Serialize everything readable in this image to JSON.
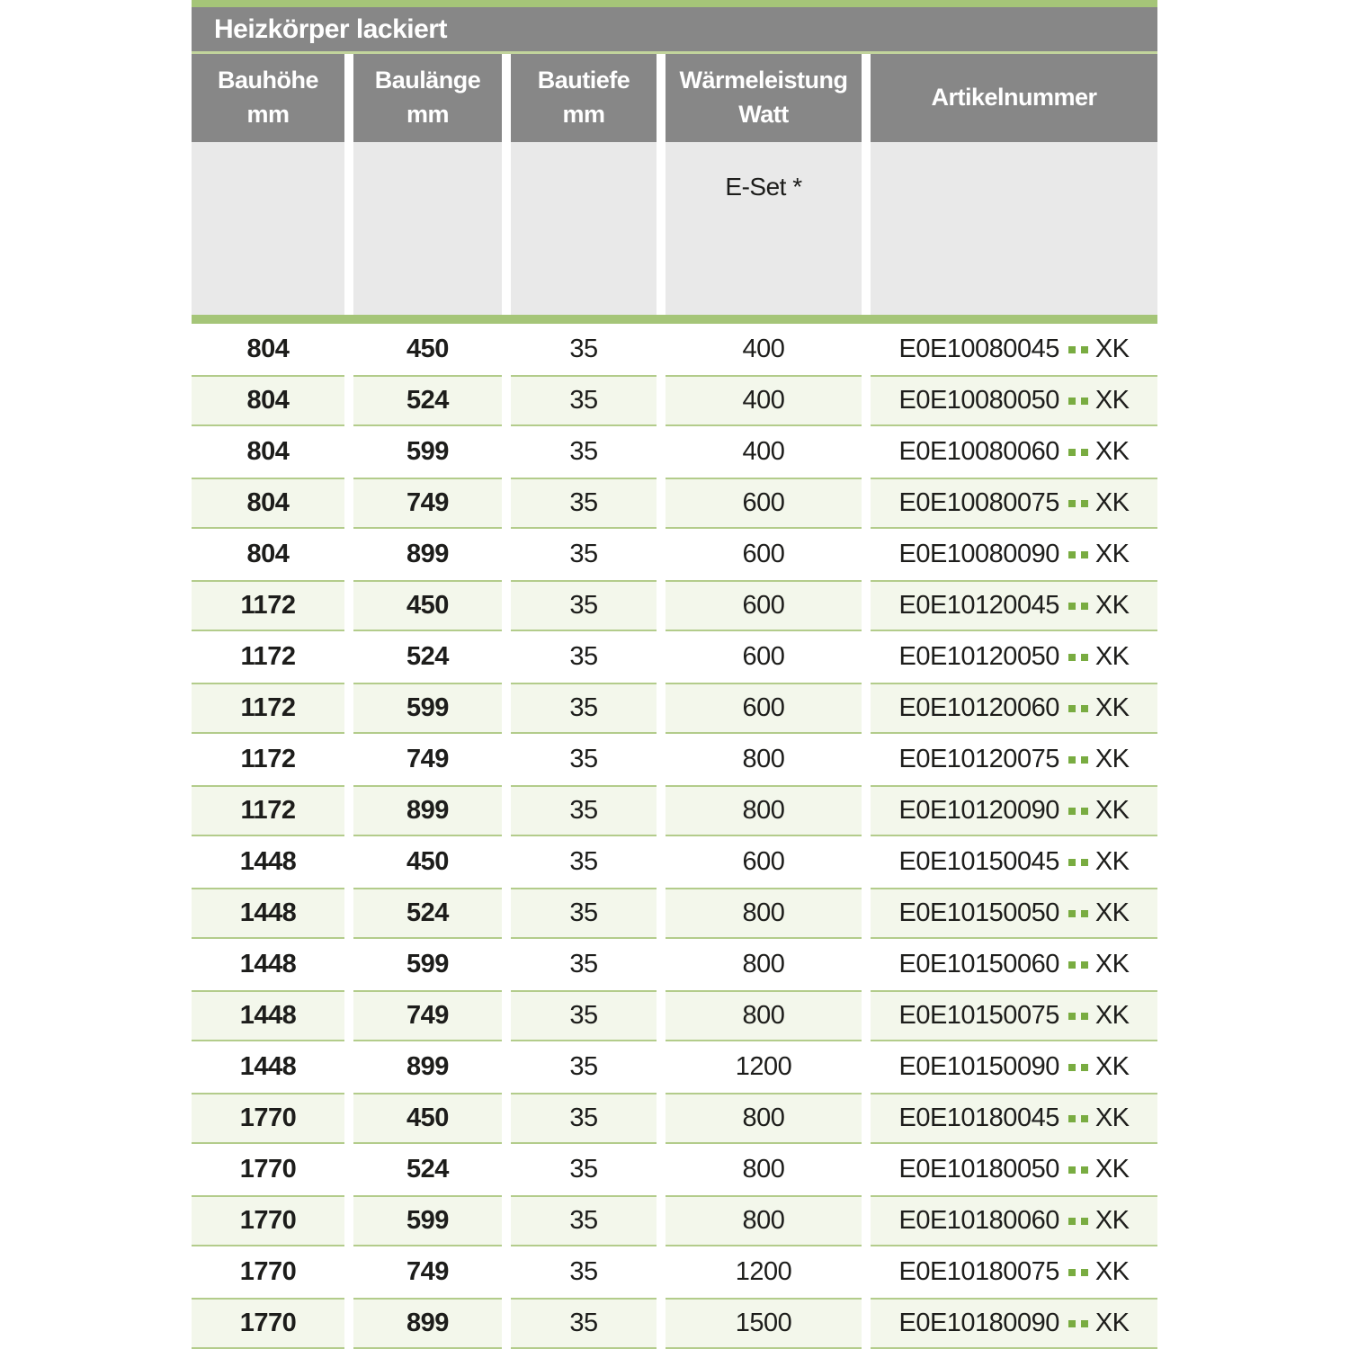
{
  "title": "Heizkörper lackiert",
  "colors": {
    "header_gray": "#878787",
    "subheader_gray": "#e9e9e9",
    "accent_green": "#a5c578",
    "thin_line_green": "#c2d49c",
    "row_tint_green": "#f3f7eb",
    "row_border_green": "#b3cc8b",
    "dot_green": "#79ac41",
    "text": "#1d1d1b",
    "header_text": "#ffffff"
  },
  "table": {
    "columns": [
      {
        "label": "Bauhöhe",
        "unit": "mm"
      },
      {
        "label": "Baulänge",
        "unit": "mm"
      },
      {
        "label": "Bautiefe",
        "unit": "mm"
      },
      {
        "label": "Wärmeleistung",
        "unit": "Watt"
      },
      {
        "label": "Artikelnummer",
        "unit": ""
      }
    ],
    "subheader": {
      "eset_label": "E-Set *"
    },
    "artikel_dots": "..",
    "rows": [
      {
        "bauhoehe": "804",
        "baulaenge": "450",
        "bautiefe": "35",
        "watt": "400",
        "artikel_prefix": "E0E10080045",
        "artikel_suffix": "XK"
      },
      {
        "bauhoehe": "804",
        "baulaenge": "524",
        "bautiefe": "35",
        "watt": "400",
        "artikel_prefix": "E0E10080050",
        "artikel_suffix": "XK"
      },
      {
        "bauhoehe": "804",
        "baulaenge": "599",
        "bautiefe": "35",
        "watt": "400",
        "artikel_prefix": "E0E10080060",
        "artikel_suffix": "XK"
      },
      {
        "bauhoehe": "804",
        "baulaenge": "749",
        "bautiefe": "35",
        "watt": "600",
        "artikel_prefix": "E0E10080075",
        "artikel_suffix": "XK"
      },
      {
        "bauhoehe": "804",
        "baulaenge": "899",
        "bautiefe": "35",
        "watt": "600",
        "artikel_prefix": "E0E10080090",
        "artikel_suffix": "XK"
      },
      {
        "bauhoehe": "1172",
        "baulaenge": "450",
        "bautiefe": "35",
        "watt": "600",
        "artikel_prefix": "E0E10120045",
        "artikel_suffix": "XK"
      },
      {
        "bauhoehe": "1172",
        "baulaenge": "524",
        "bautiefe": "35",
        "watt": "600",
        "artikel_prefix": "E0E10120050",
        "artikel_suffix": "XK"
      },
      {
        "bauhoehe": "1172",
        "baulaenge": "599",
        "bautiefe": "35",
        "watt": "600",
        "artikel_prefix": "E0E10120060",
        "artikel_suffix": "XK"
      },
      {
        "bauhoehe": "1172",
        "baulaenge": "749",
        "bautiefe": "35",
        "watt": "800",
        "artikel_prefix": "E0E10120075",
        "artikel_suffix": "XK"
      },
      {
        "bauhoehe": "1172",
        "baulaenge": "899",
        "bautiefe": "35",
        "watt": "800",
        "artikel_prefix": "E0E10120090",
        "artikel_suffix": "XK"
      },
      {
        "bauhoehe": "1448",
        "baulaenge": "450",
        "bautiefe": "35",
        "watt": "600",
        "artikel_prefix": "E0E10150045",
        "artikel_suffix": "XK"
      },
      {
        "bauhoehe": "1448",
        "baulaenge": "524",
        "bautiefe": "35",
        "watt": "800",
        "artikel_prefix": "E0E10150050",
        "artikel_suffix": "XK"
      },
      {
        "bauhoehe": "1448",
        "baulaenge": "599",
        "bautiefe": "35",
        "watt": "800",
        "artikel_prefix": "E0E10150060",
        "artikel_suffix": "XK"
      },
      {
        "bauhoehe": "1448",
        "baulaenge": "749",
        "bautiefe": "35",
        "watt": "800",
        "artikel_prefix": "E0E10150075",
        "artikel_suffix": "XK"
      },
      {
        "bauhoehe": "1448",
        "baulaenge": "899",
        "bautiefe": "35",
        "watt": "1200",
        "artikel_prefix": "E0E10150090",
        "artikel_suffix": "XK"
      },
      {
        "bauhoehe": "1770",
        "baulaenge": "450",
        "bautiefe": "35",
        "watt": "800",
        "artikel_prefix": "E0E10180045",
        "artikel_suffix": "XK"
      },
      {
        "bauhoehe": "1770",
        "baulaenge": "524",
        "bautiefe": "35",
        "watt": "800",
        "artikel_prefix": "E0E10180050",
        "artikel_suffix": "XK"
      },
      {
        "bauhoehe": "1770",
        "baulaenge": "599",
        "bautiefe": "35",
        "watt": "800",
        "artikel_prefix": "E0E10180060",
        "artikel_suffix": "XK"
      },
      {
        "bauhoehe": "1770",
        "baulaenge": "749",
        "bautiefe": "35",
        "watt": "1200",
        "artikel_prefix": "E0E10180075",
        "artikel_suffix": "XK"
      },
      {
        "bauhoehe": "1770",
        "baulaenge": "899",
        "bautiefe": "35",
        "watt": "1500",
        "artikel_prefix": "E0E10180090",
        "artikel_suffix": "XK"
      }
    ]
  }
}
